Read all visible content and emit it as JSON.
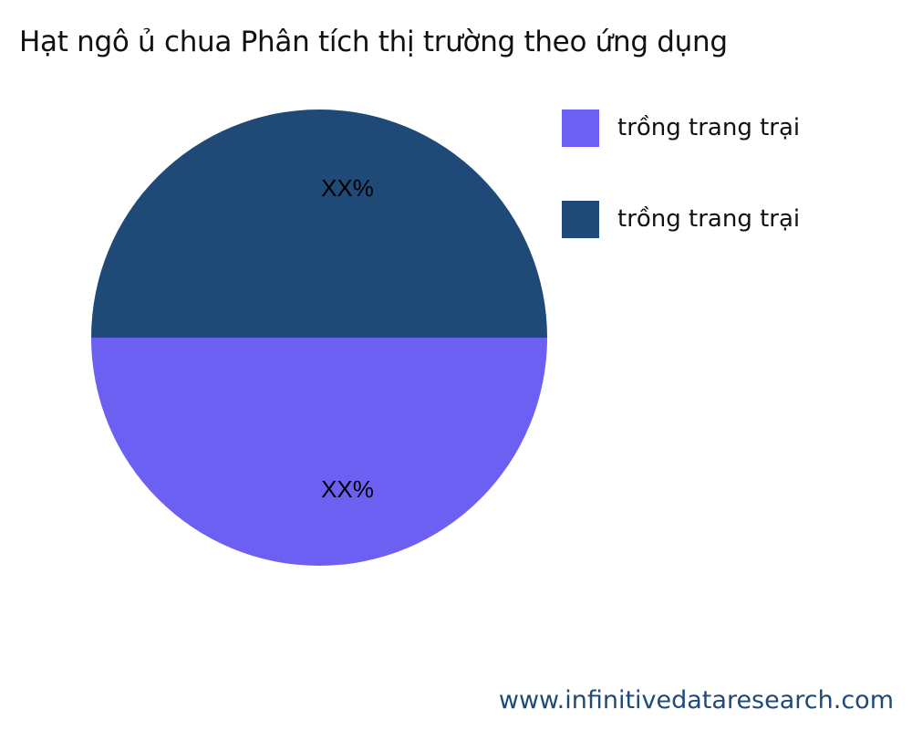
{
  "chart_data": {
    "type": "pie",
    "title": "Hạt ngô ủ chua Phân tích thị trường theo ứng dụng",
    "slices": [
      {
        "name": "trồng trang trại",
        "value": 50,
        "label": "XX%",
        "color": "#6c60f2"
      },
      {
        "name": "trồng trang trại",
        "value": 50,
        "label": "XX%",
        "color": "#1f4a78"
      }
    ],
    "legend_position": "top-right"
  },
  "watermark": "www.infinitivedataresearch.com"
}
